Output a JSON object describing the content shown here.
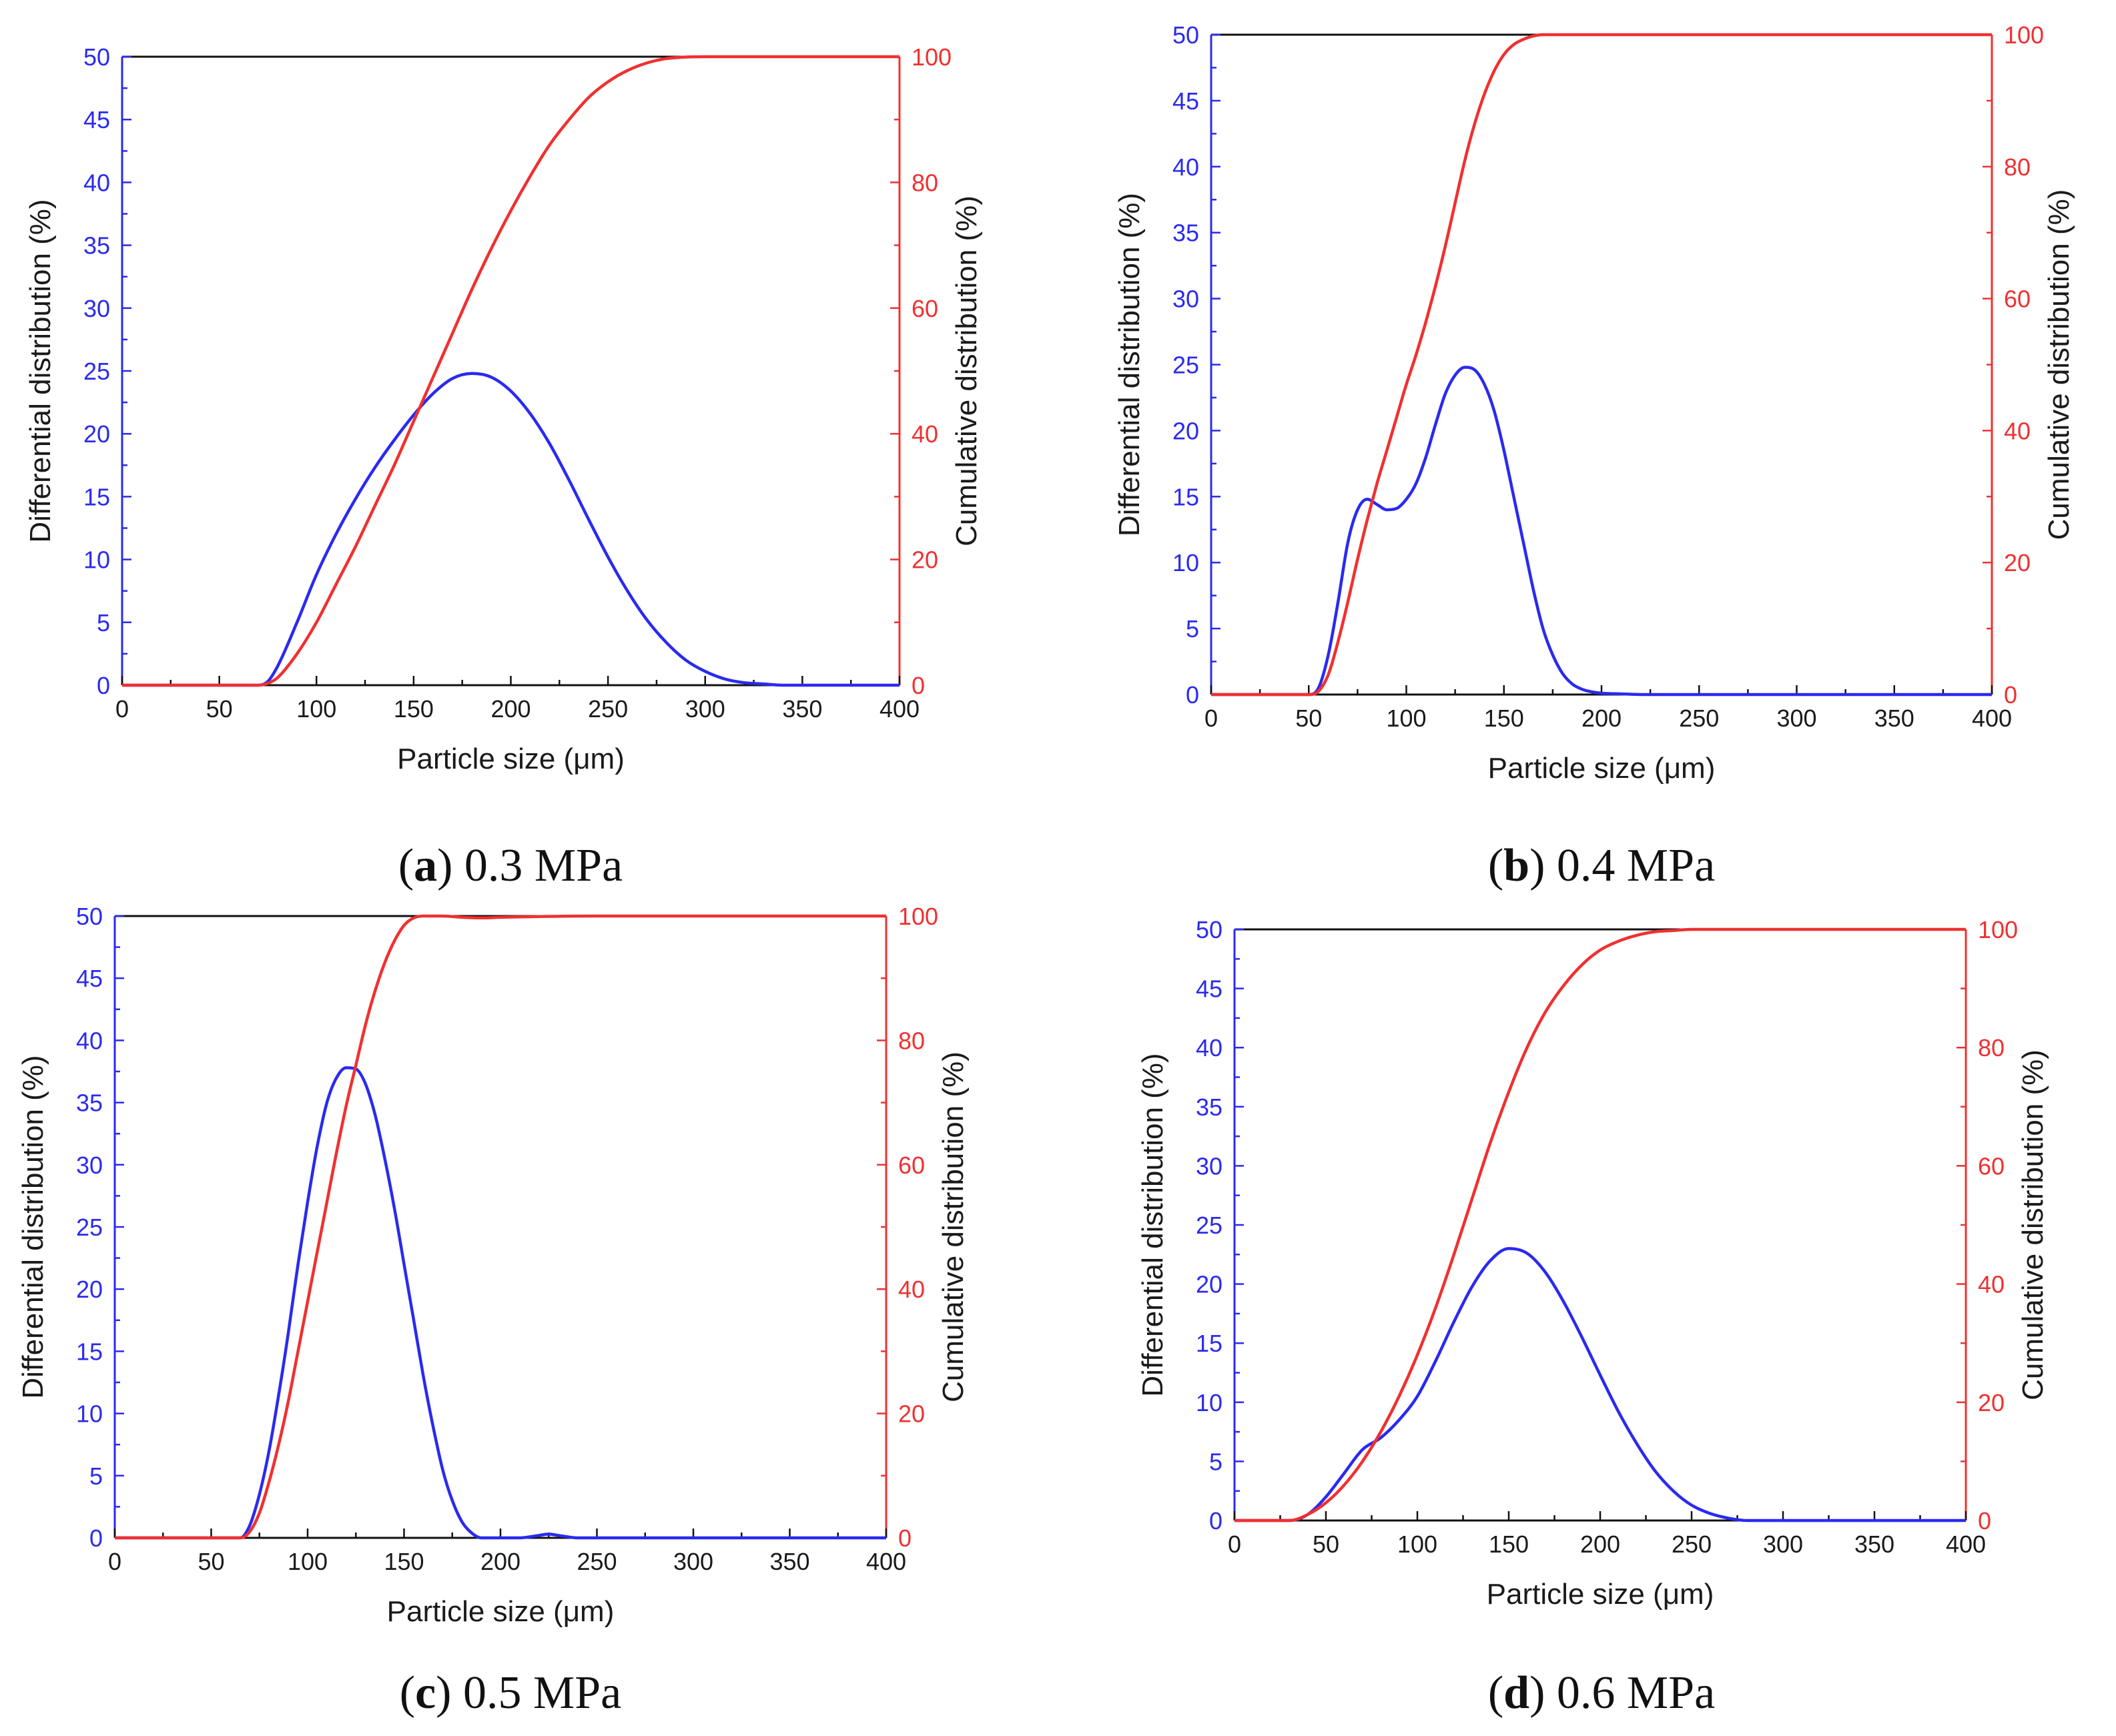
{
  "colors": {
    "left_axis": "#2a2af0",
    "right_axis": "#f03030",
    "frame": "#111111"
  },
  "chart_data": [
    {
      "type": "line",
      "caption_letter": "a",
      "caption_text": " 0.3 MPa",
      "xlabel": "Particle size (μm)",
      "ylabel": "Differential distribution (%)",
      "y2label": "Cumulative distribution (%)",
      "xlim": [
        0,
        400
      ],
      "ylim": [
        0,
        50
      ],
      "y2lim": [
        0,
        100
      ],
      "xticks": [
        0,
        50,
        100,
        150,
        200,
        250,
        300,
        350,
        400
      ],
      "yticks": [
        0,
        5,
        10,
        15,
        20,
        25,
        30,
        35,
        40,
        45,
        50
      ],
      "y2ticks": [
        0,
        20,
        40,
        60,
        80,
        100
      ],
      "series": [
        {
          "axis": "left",
          "color": "#2a2af0",
          "x": [
            0,
            70,
            75,
            80,
            90,
            100,
            110,
            120,
            130,
            140,
            150,
            160,
            170,
            180,
            190,
            200,
            210,
            220,
            230,
            240,
            250,
            260,
            270,
            280,
            290,
            300,
            310,
            320,
            330,
            340,
            400
          ],
          "values": [
            0,
            0,
            0.3,
            1.5,
            5,
            8.8,
            12,
            14.8,
            17.3,
            19.5,
            21.5,
            23.2,
            24.4,
            24.8,
            24.5,
            23.4,
            21.6,
            19.2,
            16.3,
            13.2,
            10.2,
            7.5,
            5.2,
            3.4,
            2.0,
            1.1,
            0.5,
            0.2,
            0.1,
            0,
            0
          ]
        },
        {
          "axis": "right",
          "color": "#f03030",
          "x": [
            0,
            70,
            75,
            80,
            90,
            100,
            110,
            120,
            130,
            140,
            150,
            160,
            170,
            180,
            190,
            200,
            210,
            220,
            230,
            240,
            250,
            260,
            270,
            280,
            300,
            400
          ],
          "values": [
            0,
            0,
            0.3,
            1.2,
            5,
            10,
            16,
            22,
            28.5,
            35,
            42,
            49,
            56,
            63,
            69.5,
            75.5,
            81,
            86,
            90,
            93.5,
            96,
            97.8,
            99,
            99.7,
            100,
            100
          ]
        }
      ]
    },
    {
      "type": "line",
      "caption_letter": "b",
      "caption_text": " 0.4 MPa",
      "xlabel": "Particle size (μm)",
      "ylabel": "Differential distribution (%)",
      "y2label": "Cumulative distribution (%)",
      "xlim": [
        0,
        400
      ],
      "ylim": [
        0,
        50
      ],
      "y2lim": [
        0,
        100
      ],
      "xticks": [
        0,
        50,
        100,
        150,
        200,
        250,
        300,
        350,
        400
      ],
      "yticks": [
        0,
        5,
        10,
        15,
        20,
        25,
        30,
        35,
        40,
        45,
        50
      ],
      "y2ticks": [
        0,
        20,
        40,
        60,
        80,
        100
      ],
      "series": [
        {
          "axis": "left",
          "color": "#2a2af0",
          "x": [
            0,
            50,
            55,
            60,
            65,
            70,
            75,
            80,
            85,
            90,
            95,
            100,
            105,
            110,
            115,
            120,
            125,
            130,
            135,
            140,
            145,
            150,
            155,
            160,
            165,
            170,
            175,
            180,
            185,
            190,
            195,
            200,
            210,
            220,
            400
          ],
          "values": [
            0,
            0,
            0.5,
            3,
            7,
            11.5,
            14,
            14.8,
            14.4,
            14,
            14.1,
            14.8,
            16,
            18,
            20.5,
            22.8,
            24.2,
            24.8,
            24.6,
            23.5,
            21.5,
            18.5,
            15,
            11.5,
            8,
            5,
            3,
            1.6,
            0.8,
            0.4,
            0.2,
            0.1,
            0.05,
            0,
            0
          ]
        },
        {
          "axis": "right",
          "color": "#f03030",
          "x": [
            0,
            50,
            55,
            60,
            65,
            70,
            75,
            80,
            85,
            90,
            95,
            100,
            105,
            110,
            115,
            120,
            125,
            130,
            135,
            140,
            145,
            150,
            155,
            160,
            165,
            170,
            175,
            180,
            400
          ],
          "values": [
            0,
            0,
            0.5,
            3,
            8,
            14,
            20.5,
            26.5,
            32,
            37,
            42,
            47,
            51.5,
            56.5,
            62,
            68,
            74.5,
            81,
            86.5,
            91,
            94.5,
            97,
            98.5,
            99.3,
            99.8,
            100,
            100,
            100,
            100
          ]
        }
      ]
    },
    {
      "type": "line",
      "caption_letter": "c",
      "caption_text": " 0.5 MPa",
      "xlabel": "Particle size (μm)",
      "ylabel": "Differential distribution (%)",
      "y2label": "Cumulative distribution (%)",
      "xlim": [
        0,
        400
      ],
      "ylim": [
        0,
        50
      ],
      "y2lim": [
        0,
        100
      ],
      "xticks": [
        0,
        50,
        100,
        150,
        200,
        250,
        300,
        350,
        400
      ],
      "yticks": [
        0,
        5,
        10,
        15,
        20,
        25,
        30,
        35,
        40,
        45,
        50
      ],
      "y2ticks": [
        0,
        20,
        40,
        60,
        80,
        100
      ],
      "series": [
        {
          "axis": "left",
          "color": "#2a2af0",
          "x": [
            0,
            65,
            70,
            75,
            80,
            85,
            90,
            95,
            100,
            105,
            110,
            115,
            120,
            125,
            130,
            135,
            140,
            145,
            150,
            155,
            160,
            165,
            170,
            175,
            180,
            185,
            190,
            200,
            210,
            220,
            225,
            230,
            240,
            250,
            400
          ],
          "values": [
            0,
            0,
            1,
            3.5,
            7,
            11.5,
            16.5,
            22,
            27,
            31.5,
            35,
            37,
            37.8,
            37.7,
            36.5,
            34,
            30.5,
            26.5,
            22,
            17.5,
            13,
            9,
            5.5,
            3,
            1.3,
            0.4,
            0,
            0,
            0,
            0.2,
            0.3,
            0.2,
            0,
            0,
            0
          ]
        },
        {
          "axis": "right",
          "color": "#f03030",
          "x": [
            0,
            65,
            70,
            75,
            80,
            85,
            90,
            95,
            100,
            105,
            110,
            115,
            120,
            125,
            130,
            135,
            140,
            145,
            150,
            155,
            160,
            170,
            180,
            190,
            200,
            250,
            400
          ],
          "values": [
            0,
            0,
            1,
            4,
            9,
            15,
            22,
            30,
            38,
            46,
            54,
            62,
            69.5,
            76,
            82.5,
            88,
            92.5,
            96,
            98.5,
            99.7,
            100,
            100,
            99.8,
            99.7,
            99.8,
            100,
            100
          ]
        }
      ]
    },
    {
      "type": "line",
      "caption_letter": "d",
      "caption_text": " 0.6 MPa",
      "xlabel": "Particle size (μm)",
      "ylabel": "Differential distribution (%)",
      "y2label": "Cumulative distribution (%)",
      "xlim": [
        0,
        400
      ],
      "ylim": [
        0,
        50
      ],
      "y2lim": [
        0,
        100
      ],
      "xticks": [
        0,
        50,
        100,
        150,
        200,
        250,
        300,
        350,
        400
      ],
      "yticks": [
        0,
        5,
        10,
        15,
        20,
        25,
        30,
        35,
        40,
        45,
        50
      ],
      "y2ticks": [
        0,
        20,
        40,
        60,
        80,
        100
      ],
      "series": [
        {
          "axis": "left",
          "color": "#2a2af0",
          "x": [
            0,
            30,
            40,
            50,
            60,
            70,
            80,
            90,
            100,
            110,
            120,
            130,
            140,
            150,
            160,
            170,
            180,
            190,
            200,
            210,
            220,
            230,
            240,
            250,
            260,
            270,
            280,
            400
          ],
          "values": [
            0,
            0,
            0.5,
            2,
            4,
            6,
            7,
            8.5,
            10.5,
            13.5,
            16.8,
            19.8,
            22,
            23,
            22.6,
            21,
            18.5,
            15.5,
            12.3,
            9.2,
            6.5,
            4.2,
            2.5,
            1.3,
            0.6,
            0.2,
            0,
            0
          ]
        },
        {
          "axis": "right",
          "color": "#f03030",
          "x": [
            0,
            30,
            40,
            50,
            60,
            70,
            80,
            90,
            100,
            110,
            120,
            130,
            140,
            150,
            160,
            170,
            180,
            190,
            200,
            210,
            220,
            230,
            240,
            250,
            260,
            270,
            400
          ],
          "values": [
            0,
            0,
            1,
            3,
            6,
            10,
            15,
            21,
            28,
            36,
            45,
            54.5,
            64,
            72.5,
            80,
            86,
            90.5,
            94,
            96.5,
            98,
            99,
            99.6,
            99.8,
            100,
            100,
            100,
            100
          ]
        }
      ]
    }
  ]
}
